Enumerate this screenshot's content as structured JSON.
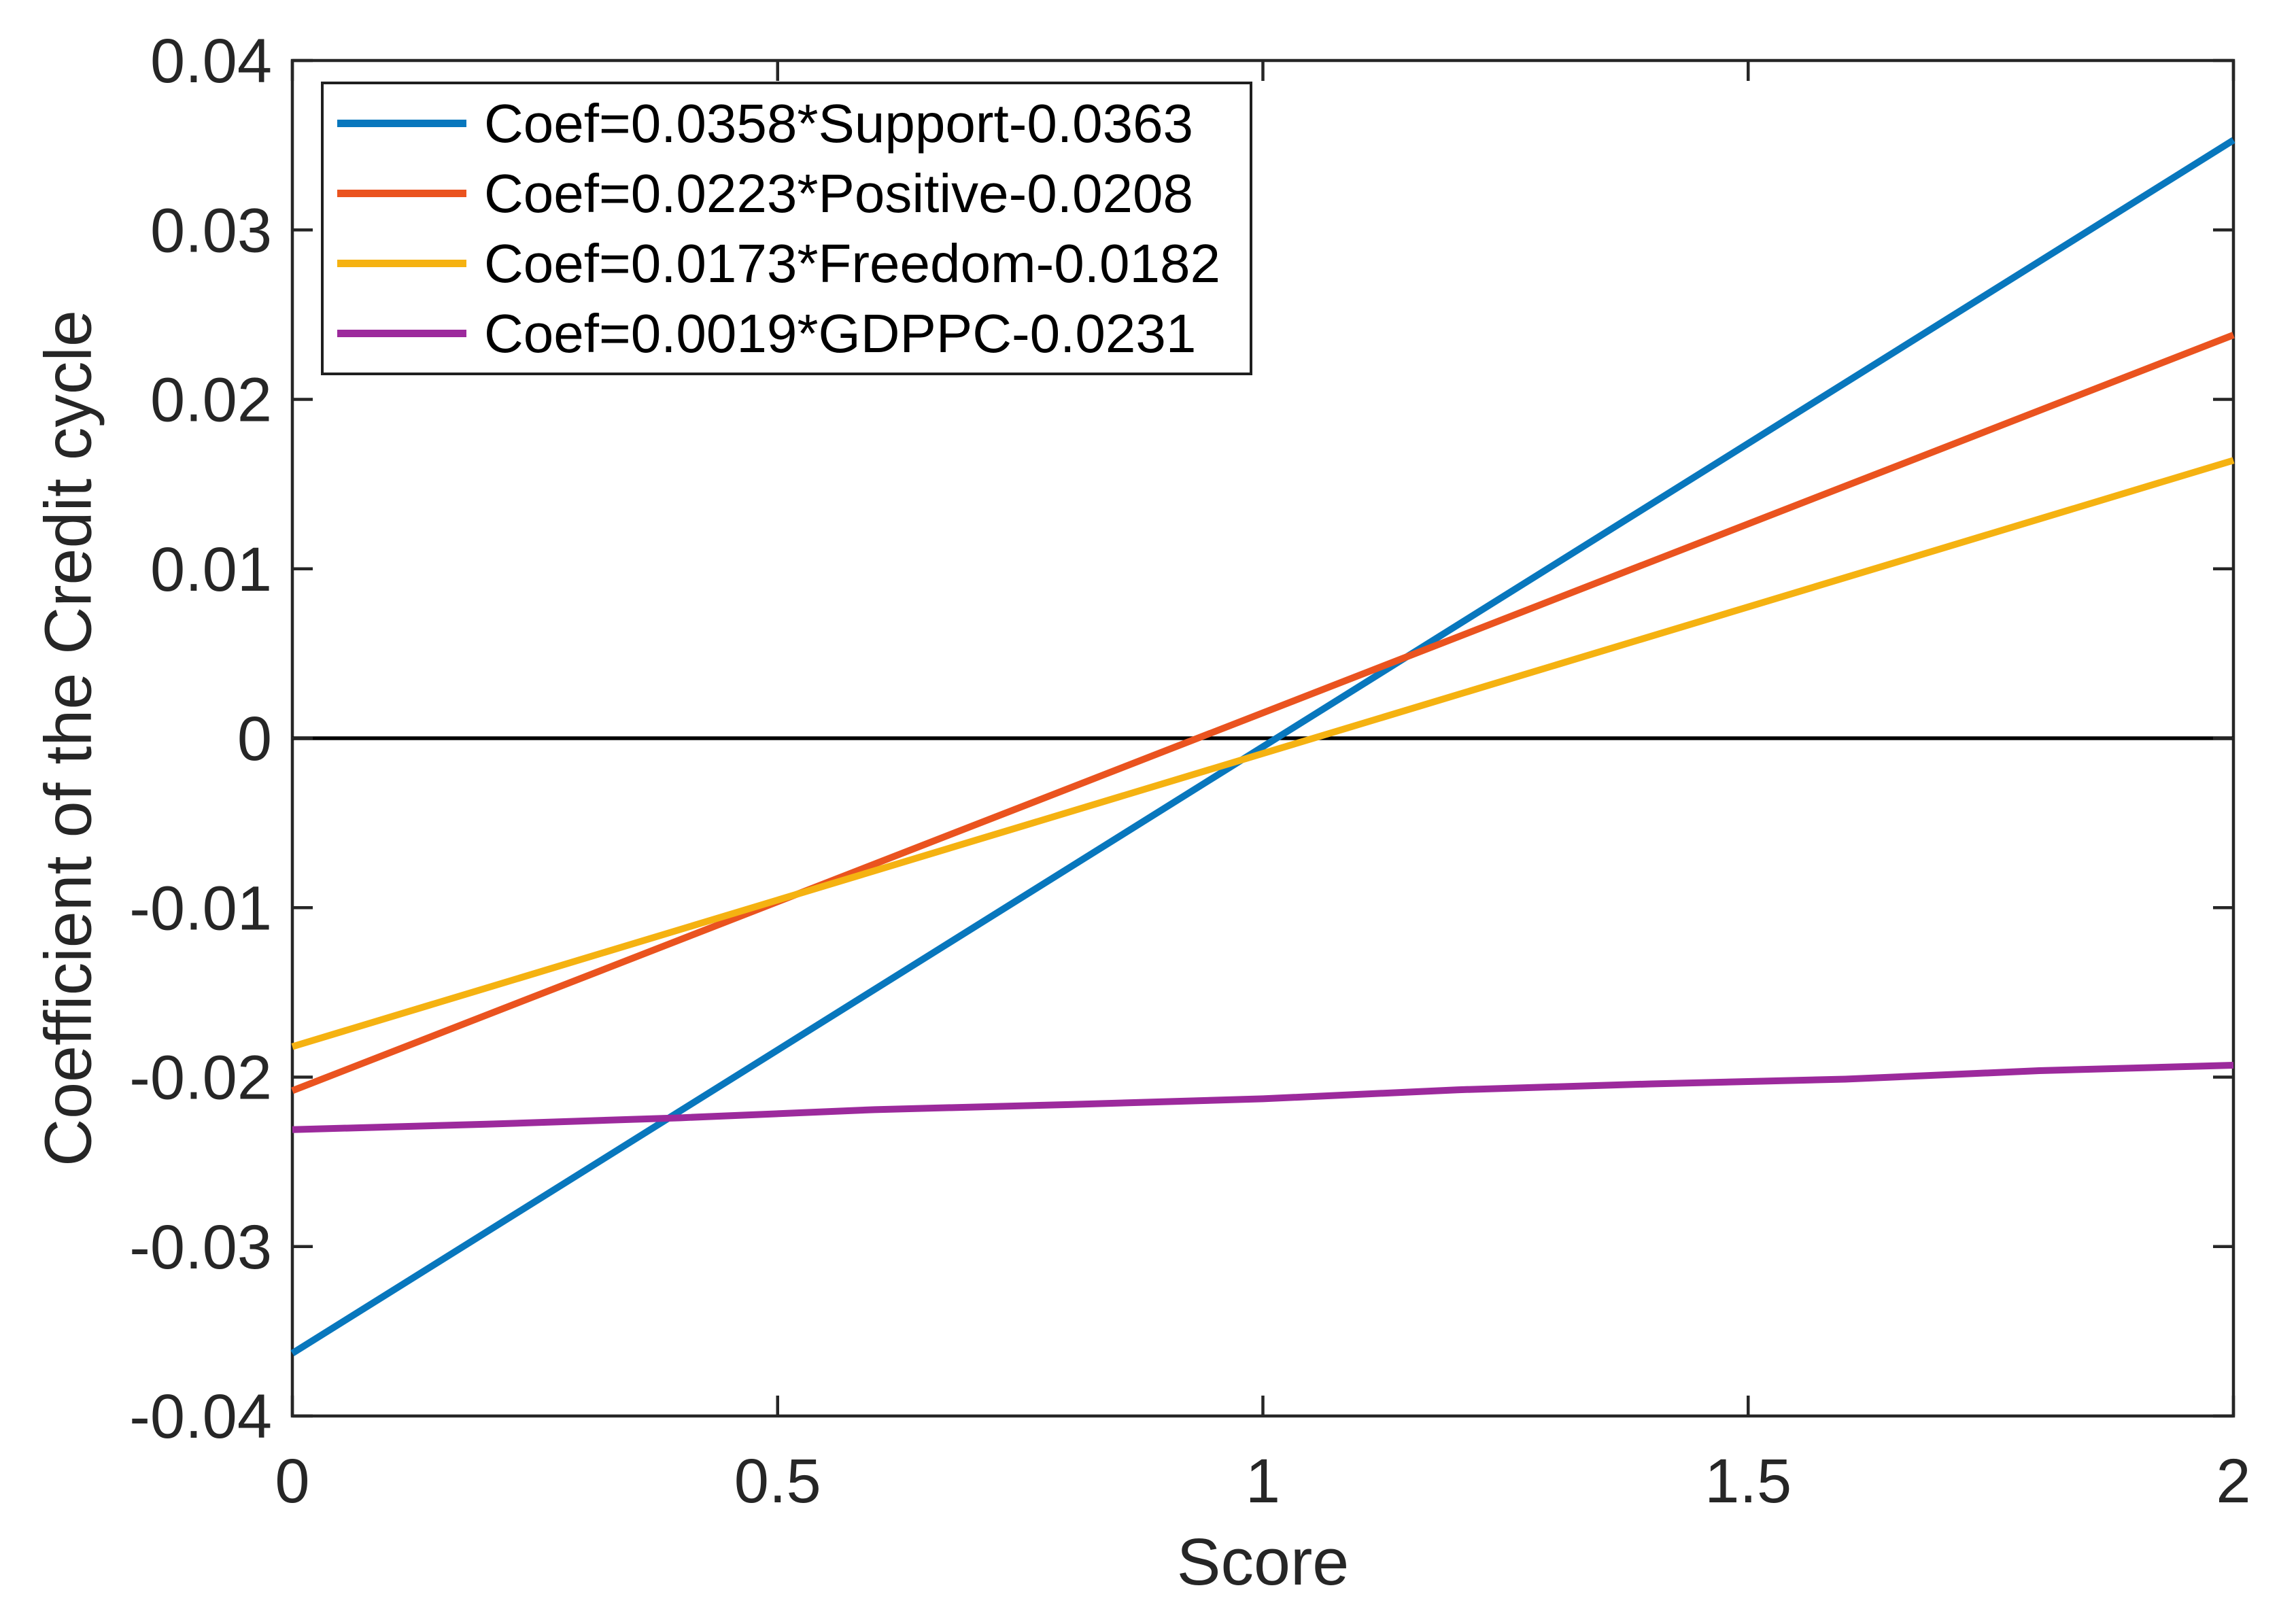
{
  "figure": {
    "background": "#ffffff",
    "axis_color": "#262626",
    "tick_label_color": "#262626"
  },
  "chart_data": {
    "type": "line",
    "title": "",
    "xlabel": "Score",
    "ylabel": "Coefficient of the Credit cycle",
    "xlim": [
      0,
      2
    ],
    "ylim": [
      -0.04,
      0.04
    ],
    "xticks": [
      0,
      0.5,
      1,
      1.5,
      2
    ],
    "xtick_labels": [
      "0",
      "0.5",
      "1",
      "1.5",
      "2"
    ],
    "yticks": [
      0.04,
      0.03,
      0.02,
      0.01,
      0,
      -0.01,
      -0.02,
      -0.03,
      -0.04
    ],
    "ytick_labels": [
      "0.04",
      "0.03",
      "0.02",
      "0.01",
      "0",
      "-0.01",
      "-0.02",
      "-0.03",
      "-0.04"
    ],
    "grid": false,
    "legend_position": "top-left",
    "zero_line": {
      "y": 0,
      "color": "#000000"
    },
    "series": [
      {
        "name": "Support",
        "label": "Coef=0.0358*Support-0.0363",
        "color": "#0877BD",
        "slope": 0.0358,
        "intercept": -0.0363,
        "x": [
          0,
          2
        ],
        "y": [
          -0.0363,
          0.0353
        ]
      },
      {
        "name": "Positive",
        "label": "Coef=0.0223*Positive-0.0208",
        "color": "#EA531F",
        "slope": 0.0223,
        "intercept": -0.0208,
        "x": [
          0,
          2
        ],
        "y": [
          -0.0208,
          0.0238
        ]
      },
      {
        "name": "Freedom",
        "label": "Coef=0.0173*Freedom-0.0182",
        "color": "#F5B211",
        "slope": 0.0173,
        "intercept": -0.0182,
        "x": [
          0,
          2
        ],
        "y": [
          -0.0182,
          0.0164
        ]
      },
      {
        "name": "GDPPC",
        "label": "Coef=0.0019*GDPPC-0.0231",
        "color": "#9C2A9C",
        "slope": 0.0019,
        "intercept": -0.0231,
        "x": [
          0,
          0.2,
          0.4,
          0.6,
          0.8,
          1.0,
          1.2,
          1.4,
          1.6,
          1.8,
          2.0
        ],
        "y": [
          -0.0231,
          -0.02278,
          -0.0224,
          -0.02192,
          -0.02162,
          -0.02128,
          -0.02075,
          -0.0204,
          -0.02012,
          -0.01962,
          -0.0193
        ]
      }
    ]
  }
}
